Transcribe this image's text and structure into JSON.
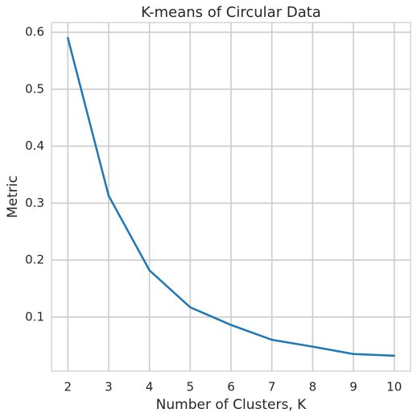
{
  "chart_data": {
    "type": "line",
    "title": "K-means of Circular Data",
    "xlabel": "Number of Clusters, K",
    "ylabel": "Metric",
    "x": [
      2,
      3,
      4,
      5,
      6,
      7,
      8,
      9,
      10
    ],
    "series": [
      {
        "values": [
          0.59,
          0.313,
          0.182,
          0.117,
          0.086,
          0.06,
          0.048,
          0.035,
          0.032
        ]
      }
    ],
    "xticks": [
      "2",
      "3",
      "4",
      "5",
      "6",
      "7",
      "8",
      "9",
      "10"
    ],
    "yticks": [
      "0.1",
      "0.2",
      "0.3",
      "0.4",
      "0.5",
      "0.6"
    ],
    "xlim": [
      1.6,
      10.4
    ],
    "ylim": [
      0.005,
      0.617
    ],
    "grid": true,
    "colors": {
      "line": "#1f77b4",
      "grid": "#cccccc",
      "axes": "#cccccc"
    }
  }
}
